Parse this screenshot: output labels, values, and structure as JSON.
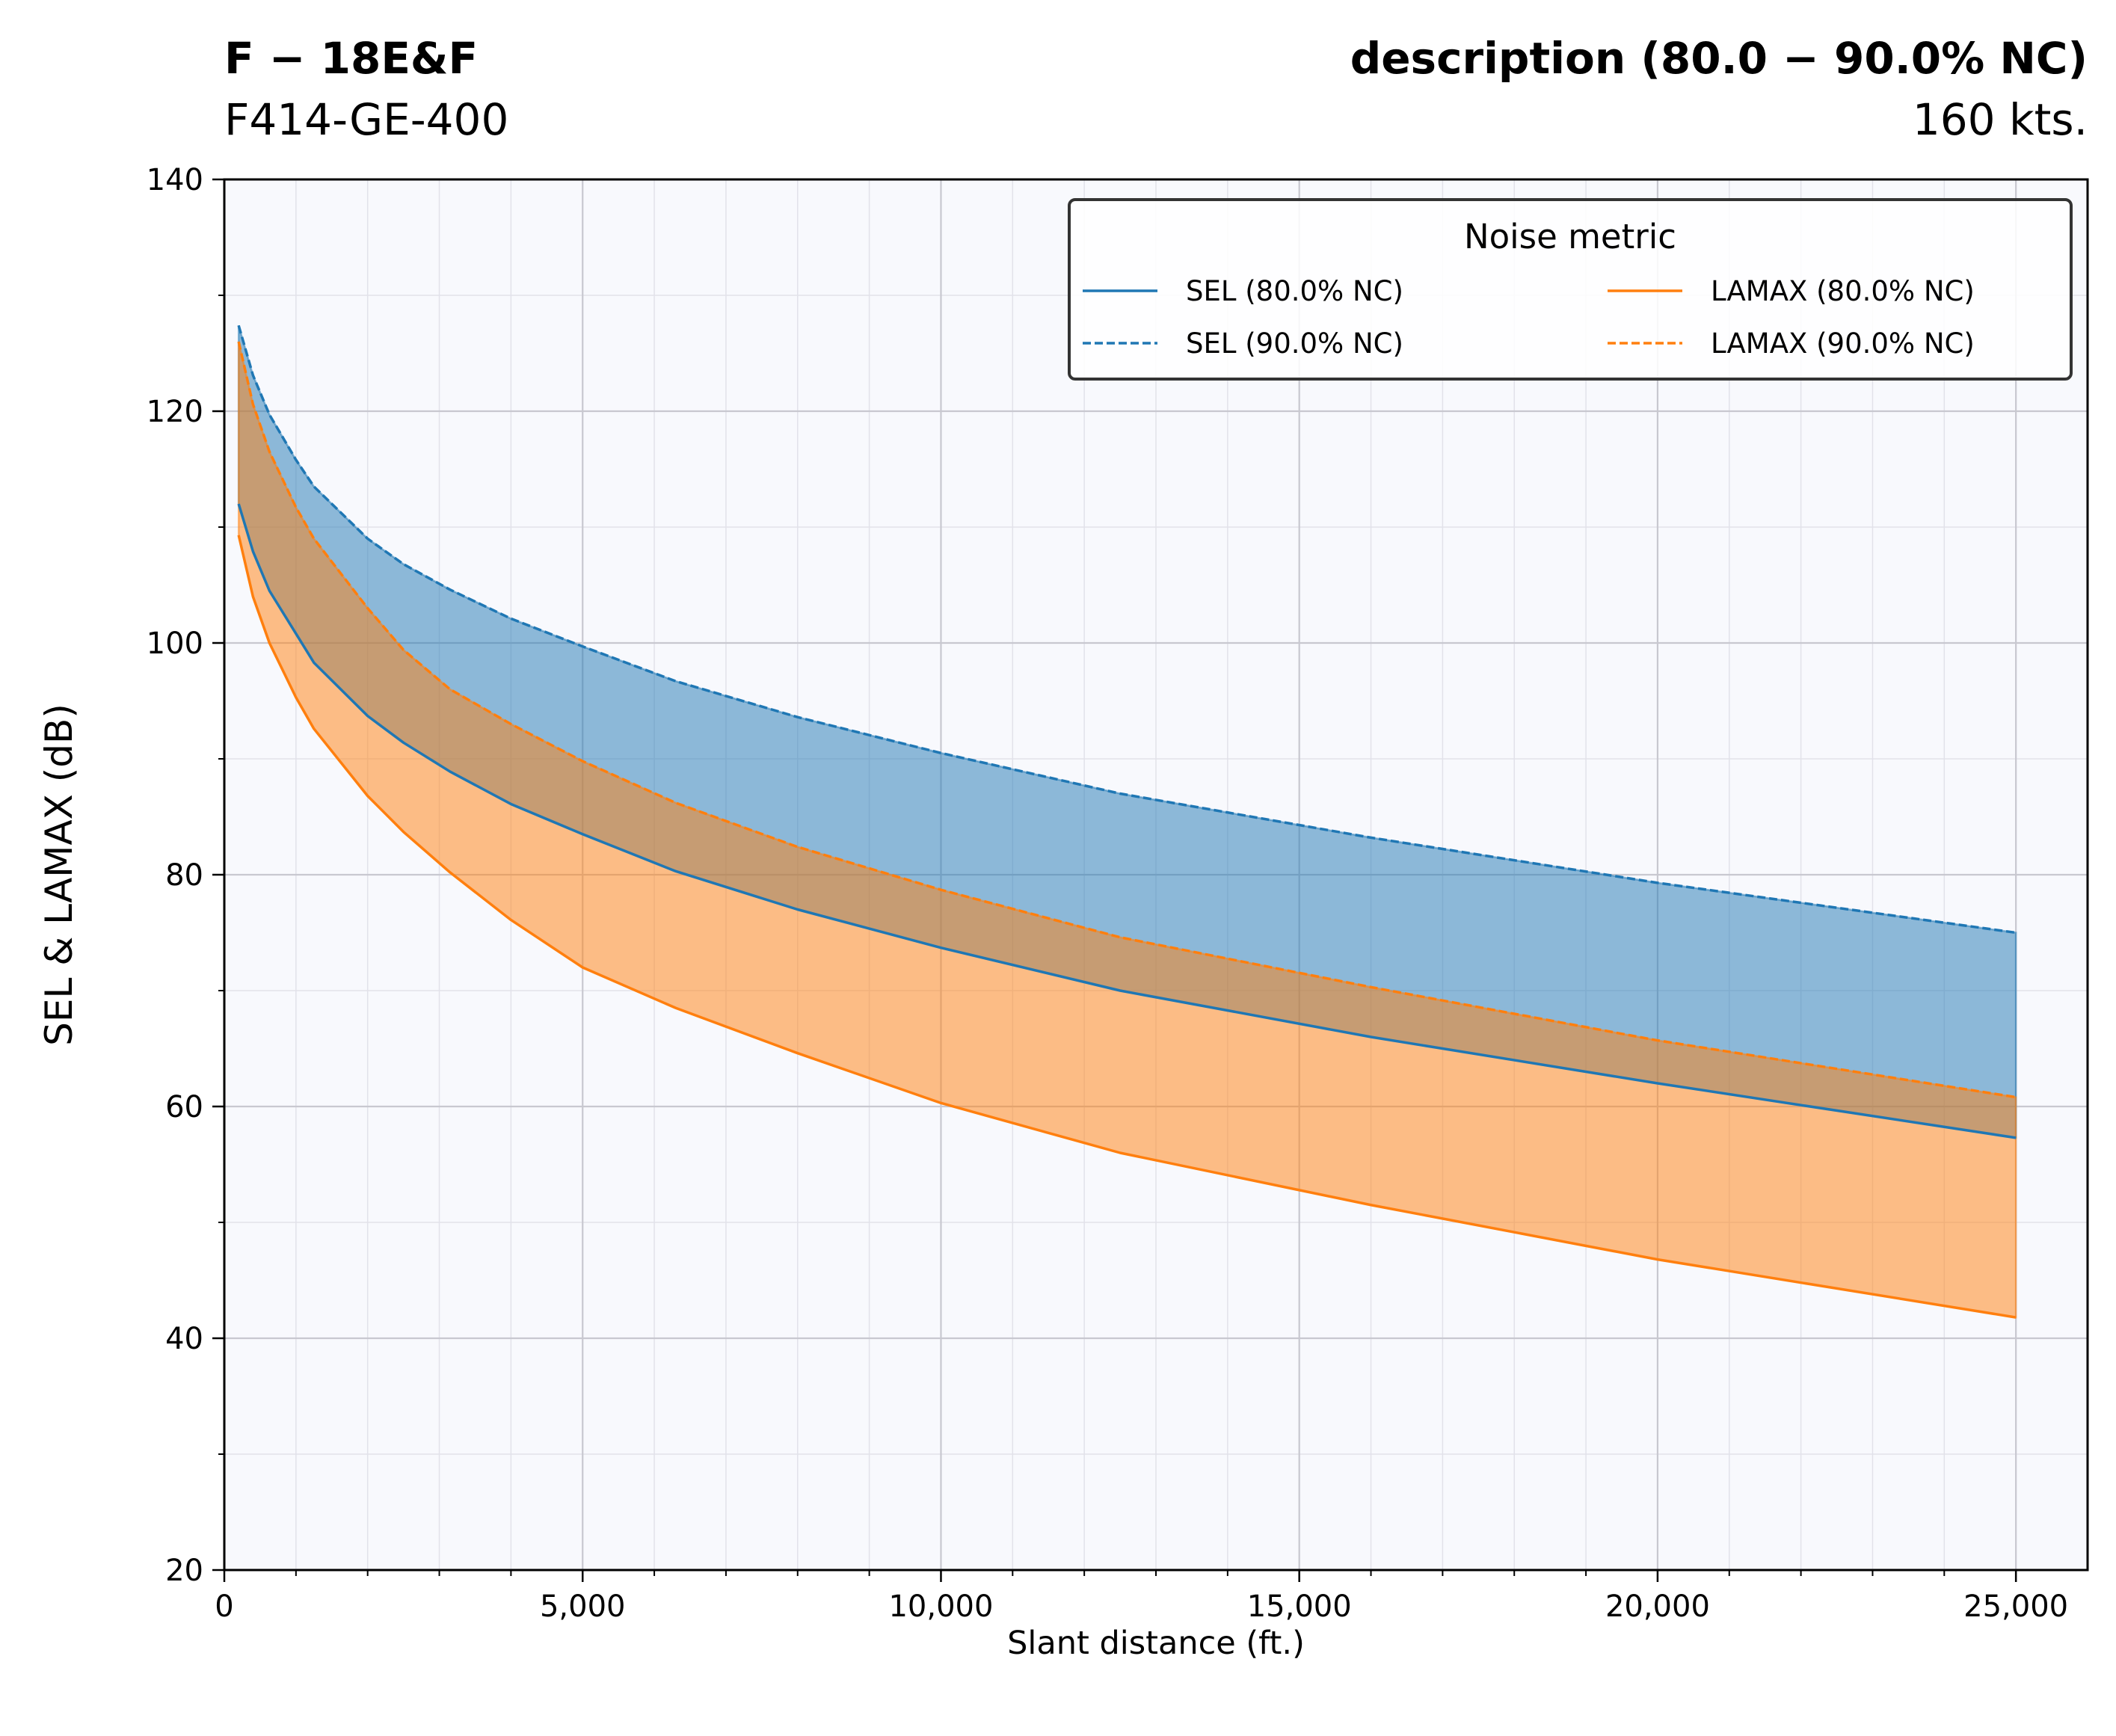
{
  "header": {
    "left_title": "F − 18E&F",
    "left_subtitle": "F414-GE-400",
    "right_title": "description (80.0  −  90.0% NC)",
    "right_subtitle": "160 kts."
  },
  "chart_data": {
    "type": "line",
    "xlabel": "Slant distance (ft.)",
    "ylabel": "SEL & LAMAX (dB)",
    "xlim": [
      0,
      26000
    ],
    "ylim": [
      20,
      140
    ],
    "xticks": [
      0,
      5000,
      10000,
      15000,
      20000,
      25000
    ],
    "xtick_labels": [
      "0",
      "5,000",
      "10,000",
      "15,000",
      "20,000",
      "25,000"
    ],
    "yticks": [
      20,
      40,
      60,
      80,
      100,
      120,
      140
    ],
    "ytick_labels": [
      "20",
      "40",
      "60",
      "80",
      "100",
      "120",
      "140"
    ],
    "grid": true,
    "legend": {
      "title": "Noise metric",
      "placement": "upper-right",
      "columns": 2
    },
    "x": [
      200,
      400,
      630,
      1000,
      1250,
      2000,
      2500,
      3150,
      4000,
      5000,
      6300,
      8000,
      10000,
      12500,
      16000,
      20000,
      25000
    ],
    "series": [
      {
        "name": "SEL (80.0% NC)",
        "color": "#1f77b4",
        "dash": "solid",
        "values": [
          112.0,
          107.9,
          104.5,
          100.8,
          98.3,
          93.7,
          91.4,
          88.9,
          86.1,
          83.5,
          80.3,
          77.0,
          73.7,
          70.0,
          66.0,
          62.0,
          57.3
        ]
      },
      {
        "name": "LAMAX (80.0% NC)",
        "color": "#ff7f0e",
        "dash": "solid",
        "values": [
          109.3,
          104.0,
          100.0,
          95.3,
          92.6,
          86.8,
          83.7,
          80.2,
          76.1,
          72.0,
          68.5,
          64.6,
          60.3,
          56.0,
          51.5,
          46.8,
          41.8
        ]
      },
      {
        "name": "SEL (90.0% NC)",
        "color": "#1f77b4",
        "dash": "dashed",
        "values": [
          127.4,
          123.1,
          119.7,
          115.8,
          113.5,
          109.0,
          106.8,
          104.6,
          102.1,
          99.7,
          96.7,
          93.6,
          90.5,
          87.0,
          83.2,
          79.3,
          75.0
        ]
      },
      {
        "name": "LAMAX (90.0% NC)",
        "color": "#ff7f0e",
        "dash": "dashed",
        "values": [
          126.0,
          120.6,
          116.5,
          111.7,
          109.0,
          103.0,
          99.4,
          96.0,
          93.0,
          89.8,
          86.2,
          82.4,
          78.7,
          74.6,
          70.3,
          65.7,
          60.8
        ]
      }
    ],
    "fills": [
      {
        "between": [
          "SEL (80.0% NC)",
          "SEL (90.0% NC)"
        ],
        "color": "#1f77b4",
        "alpha": 0.5
      },
      {
        "between": [
          "LAMAX (80.0% NC)",
          "LAMAX (90.0% NC)"
        ],
        "color": "#ff7f0e",
        "alpha": 0.5
      }
    ],
    "colors": {
      "plot_background": "#f8f9fd",
      "grid_major": "#c8c8d0",
      "grid_minor": "#e2e2ea"
    }
  }
}
